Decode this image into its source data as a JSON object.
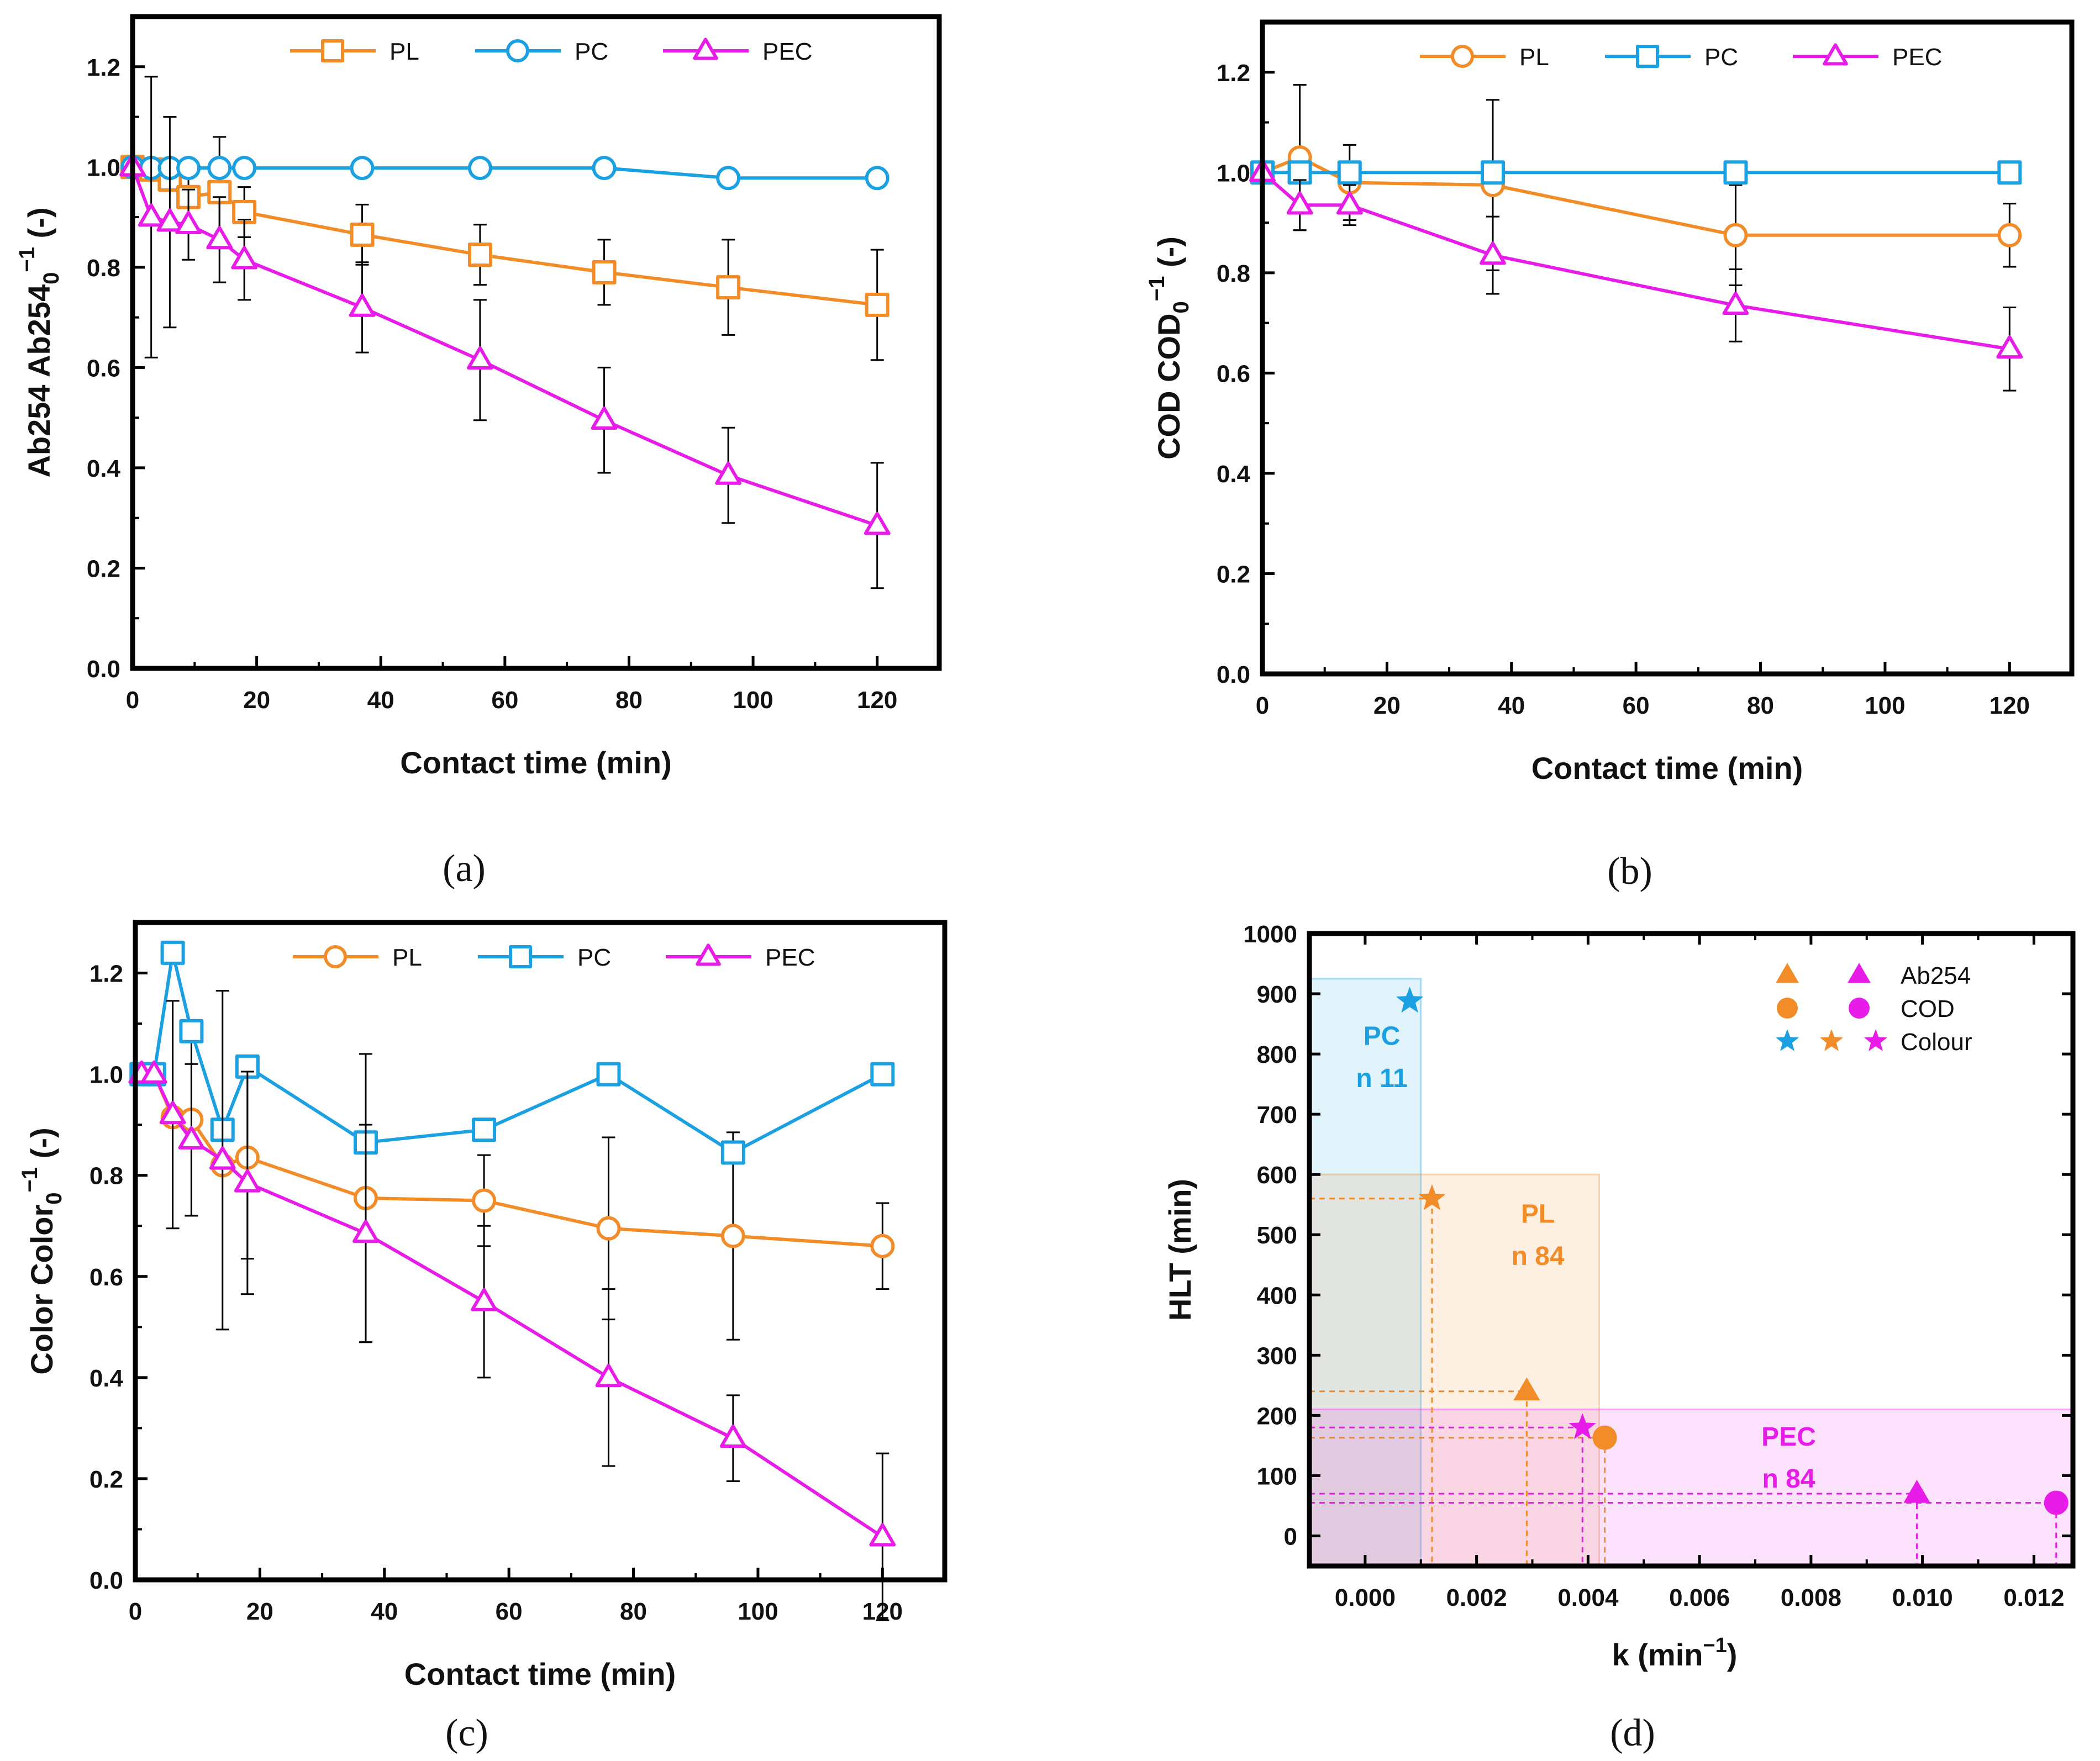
{
  "chart_data": [
    {
      "type": "line",
      "panel": "(a)",
      "xlabel": "Contact time (min)",
      "ylabel": "Ab254 Ab254",
      "ylabel_sub": "0",
      "ylabel_sup": "−1",
      "ylabel_tail": " (-)",
      "xlim": [
        0,
        130
      ],
      "ylim": [
        0,
        1.3
      ],
      "xticks": [
        0,
        20,
        40,
        60,
        80,
        100,
        120
      ],
      "yticks": [
        0.0,
        0.2,
        0.4,
        0.6,
        0.8,
        1.0,
        1.2
      ],
      "legend": [
        "PL",
        "PC",
        "PEC"
      ],
      "series": [
        {
          "name": "PL",
          "color": "#F28C28",
          "marker": "square",
          "x": [
            0,
            3,
            6,
            9,
            14,
            18,
            37,
            56,
            76,
            96,
            120
          ],
          "y": [
            1.0,
            0.995,
            0.975,
            0.94,
            0.95,
            0.91,
            0.865,
            0.825,
            0.79,
            0.76,
            0.725
          ],
          "err": [
            0,
            0,
            0,
            0.06,
            0.11,
            0.05,
            0.06,
            0.06,
            0.065,
            0.095,
            0.11
          ]
        },
        {
          "name": "PC",
          "color": "#1BA1E2",
          "marker": "circle",
          "x": [
            0,
            3,
            6,
            9,
            14,
            18,
            37,
            56,
            76,
            96,
            120
          ],
          "y": [
            1.0,
            0.998,
            0.998,
            0.998,
            0.998,
            0.998,
            0.998,
            0.998,
            0.998,
            0.978,
            0.978
          ],
          "err": []
        },
        {
          "name": "PEC",
          "color": "#E81CE8",
          "marker": "triangle",
          "x": [
            0,
            3,
            6,
            9,
            14,
            18,
            37,
            56,
            76,
            96,
            120
          ],
          "y": [
            1.0,
            0.9,
            0.89,
            0.885,
            0.855,
            0.815,
            0.72,
            0.615,
            0.495,
            0.385,
            0.285
          ],
          "err": [
            0,
            0.28,
            0.21,
            0.07,
            0.085,
            0.08,
            0.09,
            0.12,
            0.105,
            0.095,
            0.125
          ]
        }
      ]
    },
    {
      "type": "line",
      "panel": "(b)",
      "xlabel": "Contact time (min)",
      "ylabel": "COD COD",
      "ylabel_sub": "0",
      "ylabel_sup": "−1",
      "ylabel_tail": " (-)",
      "xlim": [
        0,
        130
      ],
      "ylim": [
        0,
        1.3
      ],
      "xticks": [
        0,
        20,
        40,
        60,
        80,
        100,
        120
      ],
      "yticks": [
        0.0,
        0.2,
        0.4,
        0.6,
        0.8,
        1.0,
        1.2
      ],
      "legend": [
        "PL",
        "PC",
        "PEC"
      ],
      "series": [
        {
          "name": "PL",
          "color": "#F28C28",
          "marker": "circle",
          "x": [
            0,
            6,
            14,
            37,
            76,
            120
          ],
          "y": [
            1.0,
            1.03,
            0.98,
            0.975,
            0.875,
            0.875
          ],
          "err": [
            0,
            0.145,
            0.075,
            0.17,
            0.1,
            0.063
          ]
        },
        {
          "name": "PC",
          "color": "#1BA1E2",
          "marker": "square",
          "x": [
            0,
            6,
            14,
            37,
            76,
            120
          ],
          "y": [
            1.0,
            1.0,
            1.0,
            1.0,
            1.0,
            1.0
          ],
          "err": []
        },
        {
          "name": "PEC",
          "color": "#E81CE8",
          "marker": "triangle",
          "x": [
            0,
            6,
            14,
            37,
            76,
            120
          ],
          "y": [
            1.0,
            0.935,
            0.935,
            0.835,
            0.735,
            0.648
          ],
          "err": [
            0,
            0.05,
            0.04,
            0.077,
            0.072,
            0.083
          ]
        }
      ]
    },
    {
      "type": "line",
      "panel": "(c)",
      "xlabel": "Contact time (min)",
      "ylabel": "Color Color",
      "ylabel_sub": "0",
      "ylabel_sup": "−1",
      "ylabel_tail": " (-)",
      "xlim": [
        0,
        130
      ],
      "ylim": [
        0,
        1.3
      ],
      "xticks": [
        0,
        20,
        40,
        60,
        80,
        100,
        120
      ],
      "yticks": [
        0.0,
        0.2,
        0.4,
        0.6,
        0.8,
        1.0,
        1.2
      ],
      "legend": [
        "PL",
        "PC",
        "PEC"
      ],
      "series": [
        {
          "name": "PL",
          "color": "#F28C28",
          "marker": "circle",
          "x": [
            1,
            3,
            6,
            9,
            14,
            18,
            37,
            56,
            76,
            96,
            120
          ],
          "y": [
            1.0,
            1.0,
            0.915,
            0.91,
            0.82,
            0.835,
            0.755,
            0.75,
            0.695,
            0.68,
            0.66
          ],
          "err": [
            0,
            0,
            0,
            0.19,
            0,
            0.2,
            0.285,
            0.09,
            0.18,
            0.205,
            0.085
          ]
        },
        {
          "name": "PC",
          "color": "#1BA1E2",
          "marker": "square",
          "x": [
            1,
            3,
            6,
            9,
            14,
            18,
            37,
            56,
            76,
            96,
            120
          ],
          "y": [
            1.0,
            1.0,
            1.24,
            1.085,
            0.89,
            1.015,
            0.865,
            0.89,
            1.0,
            0.845,
            1.0
          ],
          "err": []
        },
        {
          "name": "PEC",
          "color": "#E81CE8",
          "marker": "triangle",
          "x": [
            1,
            3,
            6,
            9,
            14,
            18,
            37,
            56,
            76,
            96,
            120
          ],
          "y": [
            1.0,
            1.0,
            0.92,
            0.87,
            0.83,
            0.785,
            0.685,
            0.55,
            0.4,
            0.28,
            0.085
          ],
          "err": [
            0,
            0,
            0.225,
            0.15,
            0.335,
            0.22,
            0.215,
            0.15,
            0.175,
            0.085,
            0.165
          ]
        }
      ]
    },
    {
      "type": "scatter",
      "panel": "(d)",
      "xlabel": "k (min",
      "xlabel_sup": "−1",
      "xlabel_tail": ")",
      "ylabel": "HLT (min)",
      "xlim": [
        -0.001,
        0.0127
      ],
      "ylim": [
        -50,
        1000
      ],
      "xticks": [
        0.0,
        0.002,
        0.004,
        0.006,
        0.008,
        0.01,
        0.012
      ],
      "xtick_labels": [
        "0.000",
        "0.002",
        "0.004",
        "0.006",
        "0.008",
        "0.010",
        "0.012"
      ],
      "yticks": [
        0,
        100,
        200,
        300,
        400,
        500,
        600,
        700,
        800,
        900,
        1000
      ],
      "legend": [
        {
          "label": "Ab254",
          "markers": [
            "triangle:#F28C28",
            "triangle:#E81CE8"
          ]
        },
        {
          "label": "COD",
          "markers": [
            "circle:#F28C28",
            "circle:#E81CE8"
          ]
        },
        {
          "label": "Colour",
          "markers": [
            "star:#1BA1E2",
            "star:#F28C28",
            "star:#E81CE8"
          ]
        }
      ],
      "regions": [
        {
          "name": "PC",
          "label": "PC",
          "n_label": "n 11",
          "color": "#1BA1E2",
          "x": [
            -0.001,
            0.001
          ],
          "y": [
            -50,
            925
          ]
        },
        {
          "name": "PL",
          "label": "PL",
          "n_label": "n 84",
          "color": "#F28C28",
          "x": [
            -0.001,
            0.0042
          ],
          "y": [
            -50,
            600
          ]
        },
        {
          "name": "PEC",
          "label": "PEC",
          "n_label": "n 84",
          "color": "#E81CE8",
          "x": [
            -0.001,
            0.0127
          ],
          "y": [
            -50,
            210
          ]
        }
      ],
      "points": [
        {
          "group": "PC",
          "metric": "Colour",
          "marker": "star",
          "color": "#1BA1E2",
          "k": 0.0008,
          "hlt": 888,
          "guides": false
        },
        {
          "group": "PL",
          "metric": "Colour",
          "marker": "star",
          "color": "#F28C28",
          "k": 0.0012,
          "hlt": 560,
          "guides": true
        },
        {
          "group": "PL",
          "metric": "Ab254",
          "marker": "triangle",
          "color": "#F28C28",
          "k": 0.0029,
          "hlt": 240,
          "guides": true
        },
        {
          "group": "PL",
          "metric": "COD",
          "marker": "circle",
          "color": "#F28C28",
          "k": 0.0043,
          "hlt": 163,
          "guides": true
        },
        {
          "group": "PEC",
          "metric": "Colour",
          "marker": "star",
          "color": "#E81CE8",
          "k": 0.0039,
          "hlt": 180,
          "guides": true
        },
        {
          "group": "PEC",
          "metric": "Ab254",
          "marker": "triangle",
          "color": "#E81CE8",
          "k": 0.0099,
          "hlt": 70,
          "guides": true
        },
        {
          "group": "PEC",
          "metric": "COD",
          "marker": "circle",
          "color": "#E81CE8",
          "k": 0.0124,
          "hlt": 55,
          "guides": true
        }
      ]
    }
  ]
}
